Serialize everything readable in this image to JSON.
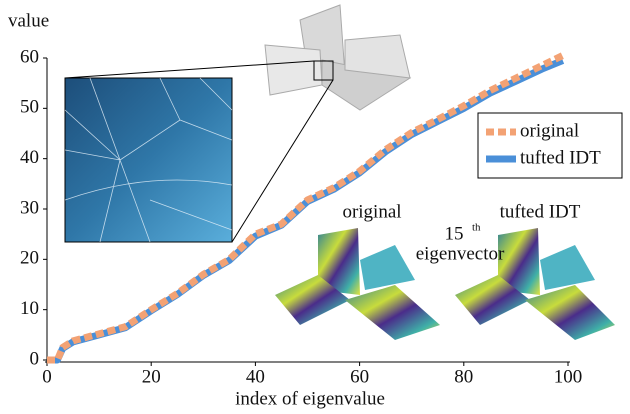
{
  "chart_data": {
    "type": "line",
    "y_label": "value",
    "x_label": "index of eigenvalue",
    "x": [
      0,
      2,
      3,
      5,
      10,
      15,
      20,
      25,
      30,
      35,
      40,
      45,
      50,
      55,
      60,
      65,
      70,
      75,
      80,
      85,
      90,
      95,
      99
    ],
    "series": [
      {
        "name": "original",
        "color": "#f3a274",
        "values": [
          0,
          0,
          2.5,
          3.8,
          5.2,
          6.6,
          10,
          13.2,
          17,
          20,
          25,
          27,
          31.8,
          34.2,
          37.5,
          41.8,
          45.2,
          47.8,
          50.5,
          53.5,
          56,
          58.5,
          60.5
        ]
      },
      {
        "name": "tufted IDT",
        "color": "#4a8fd8",
        "values": [
          0,
          0,
          2.3,
          3.6,
          5,
          6.4,
          9.8,
          13,
          16.8,
          19.8,
          24.6,
          26.8,
          31.5,
          33.9,
          37.2,
          41.4,
          44.8,
          47.4,
          50,
          53,
          55.4,
          57.8,
          59.5
        ]
      }
    ],
    "xlim": [
      0,
      100
    ],
    "ylim": [
      0,
      60
    ],
    "xticks": [
      0,
      20,
      40,
      60,
      80,
      100
    ],
    "yticks": [
      0,
      10,
      20,
      30,
      40,
      50,
      60
    ],
    "legend": "right",
    "annotations": {
      "left_render": "original",
      "mode_number": "15",
      "mode_suffix": "th",
      "mode_caption": "eigenvector",
      "right_render": "tufted IDT"
    }
  }
}
